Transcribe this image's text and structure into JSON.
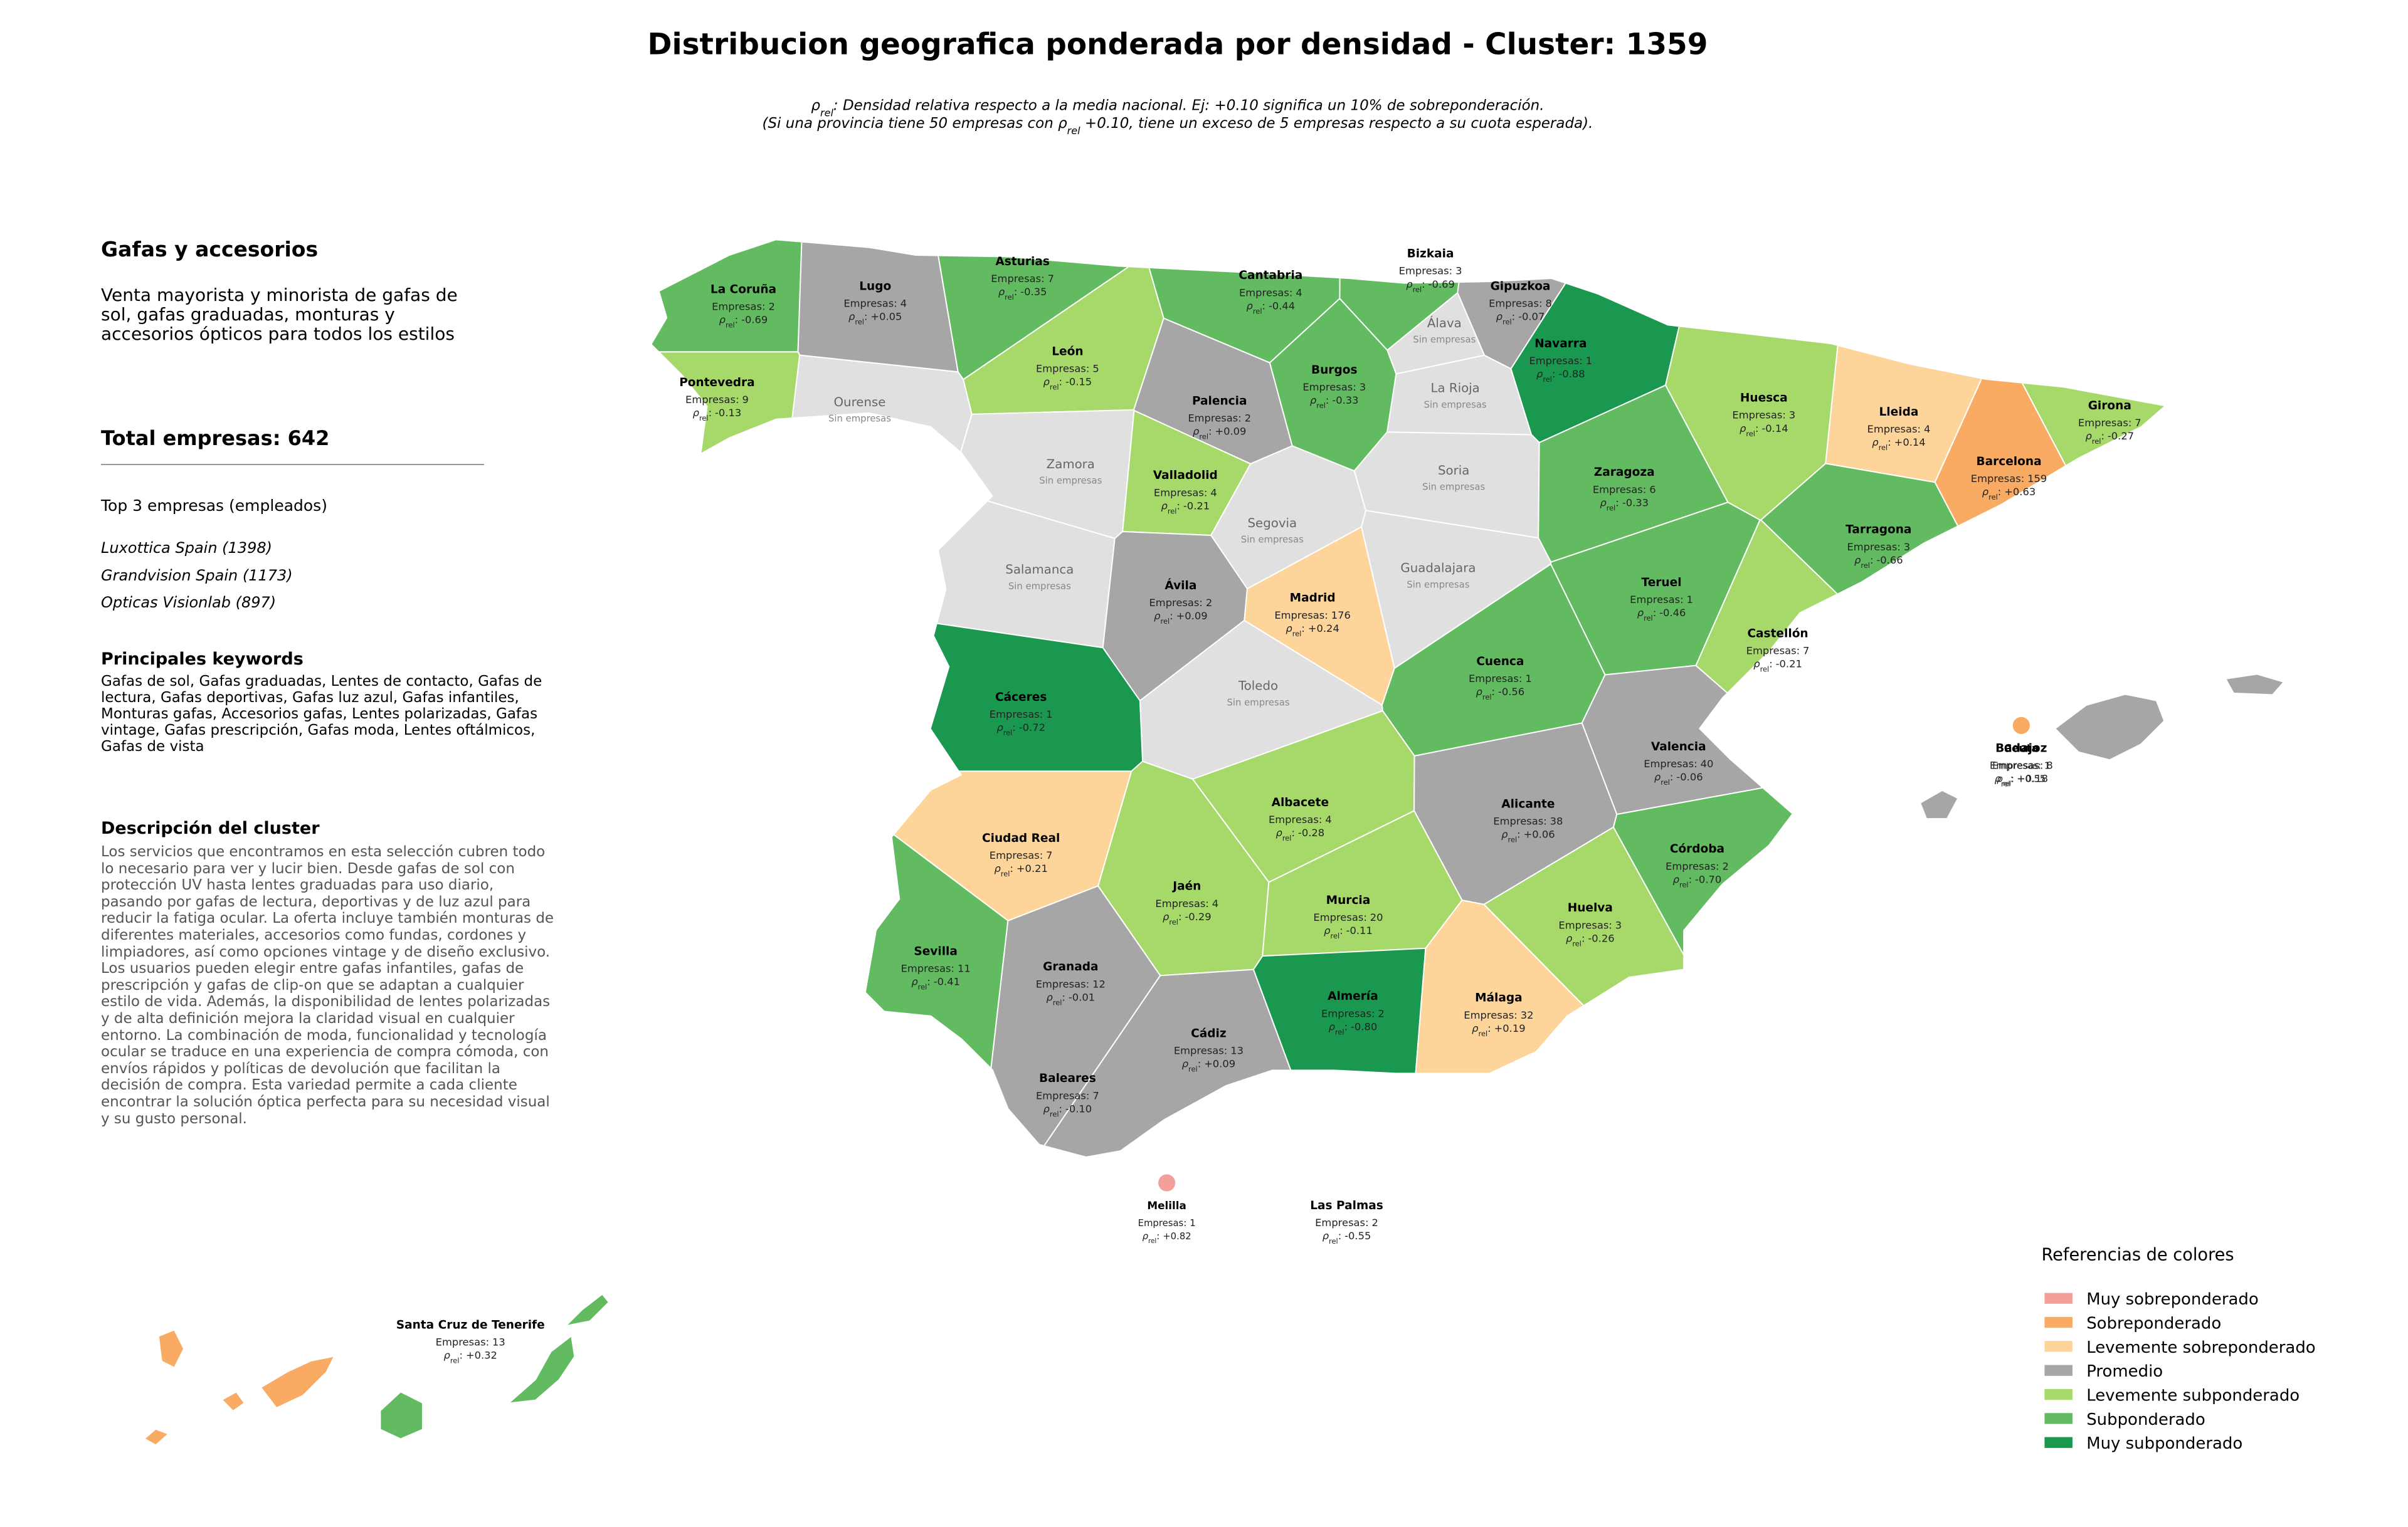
{
  "header": {
    "title": "Distribucion geografica ponderada por densidad - Cluster: 1359",
    "subtitle": [
      [
        {
          "text": "ρ"
        },
        {
          "sub": "rel"
        },
        {
          "text": ": Densidad relativa respecto a la media nacional. Ej: +0.10 significa un 10% de sobreponderación."
        }
      ],
      [
        {
          "text": "(Si una provincia tiene 50 empresas con "
        },
        {
          "text": "ρ"
        },
        {
          "sub": "rel"
        },
        {
          "text": " +0.10, tiene un exceso de 5 empresas respecto a su cuota esperada)."
        }
      ]
    ]
  },
  "panel": {
    "sector": "Gafas y accesorios",
    "sector_description": "Venta mayorista y minorista de gafas de sol, gafas graduadas, monturas y accesorios ópticos para todos los estilos",
    "total_label": "Total empresas:",
    "total": 642,
    "top_title": "Top 3 empresas (empleados)",
    "top": [
      "Luxottica Spain (1398)",
      "Grandvision Spain (1173)",
      "Opticas Visionlab (897)"
    ],
    "keywords_title": "Principales keywords",
    "keywords": "Gafas de sol, Gafas graduadas, Lentes de contacto, Gafas de lectura, Gafas deportivas, Gafas luz azul, Gafas infantiles, Monturas gafas, Accesorios gafas, Lentes polarizadas, Gafas vintage, Gafas prescripción, Gafas moda, Lentes oftálmicos, Gafas de vista",
    "description_title": "Descripción del cluster",
    "description": "Los servicios que encontramos en esta selección cubren todo lo necesario para ver y lucir bien. Desde gafas de sol con protección UV hasta lentes graduadas para uso diario, pasando por gafas de lectura, deportivas y de luz azul para reducir la fatiga ocular. La oferta incluye también monturas de diferentes materiales, accesorios como fundas, cordones y limpiadores, así como opciones vintage y de diseño exclusivo. Los usuarios pueden elegir entre gafas infantiles, gafas de prescripción y gafas de clip-on que se adaptan a cualquier estilo de vida. Además, la disponibilidad de lentes polarizadas y de alta definición mejora la claridad visual en cualquier entorno. La combinación de moda, funcionalidad y tecnología ocular se traduce en una experiencia de compra cómoda, con envíos rápidos y políticas de devolución que facilitan la decisión de compra. Esta variedad permite a cada cliente encontrar la solución óptica perfecta para su necesidad visual y su gusto personal."
  },
  "map": {
    "labels": {
      "empresas": "Empresas:",
      "none": "Sin empresas",
      "rho": "ρ",
      "rho_sub": "rel",
      "rho_suffix": ":"
    },
    "provinces": [
      {
        "name": "La Coruña",
        "empresas": 2,
        "rho": -0.69,
        "rho_label": "-0.69",
        "color": "#62bb60"
      },
      {
        "name": "Lugo",
        "empresas": 4,
        "rho": 0.05,
        "rho_label": "+0.05",
        "color": "#a6a6a6"
      },
      {
        "name": "Asturias",
        "empresas": 7,
        "rho": -0.35,
        "rho_label": "-0.35",
        "color": "#62bb60"
      },
      {
        "name": "Cantabria",
        "empresas": 4,
        "rho": -0.44,
        "rho_label": "-0.44",
        "color": "#62bb60"
      },
      {
        "name": "Bizkaia",
        "empresas": 3,
        "rho": -0.69,
        "rho_label": "-0.69",
        "color": "#62bb60"
      },
      {
        "name": "Gipuzkoa",
        "empresas": 8,
        "rho": -0.07,
        "rho_label": "-0.07",
        "color": "#a6a6a6"
      },
      {
        "name": "Navarra",
        "empresas": 1,
        "rho": -0.88,
        "rho_label": "-0.88",
        "color": "#1a9850"
      },
      {
        "name": "Pontevedra",
        "empresas": 9,
        "rho": -0.13,
        "rho_label": "-0.13",
        "color": "#a6d96a"
      },
      {
        "name": "Ourense",
        "color": "#e0e0e0"
      },
      {
        "name": "León",
        "empresas": 5,
        "rho": -0.15,
        "rho_label": "-0.15",
        "color": "#a6d96a"
      },
      {
        "name": "Palencia",
        "empresas": 2,
        "rho": 0.09,
        "rho_label": "+0.09",
        "color": "#a6a6a6"
      },
      {
        "name": "Burgos",
        "empresas": 3,
        "rho": -0.33,
        "rho_label": "-0.33",
        "color": "#62bb60"
      },
      {
        "name": "Álava",
        "color": "#e0e0e0"
      },
      {
        "name": "La Rioja",
        "color": "#e0e0e0"
      },
      {
        "name": "Huesca",
        "empresas": 3,
        "rho": -0.14,
        "rho_label": "-0.14",
        "color": "#a6d96a"
      },
      {
        "name": "Lleida",
        "empresas": 4,
        "rho": 0.14,
        "rho_label": "+0.14",
        "color": "#fdd49a"
      },
      {
        "name": "Girona",
        "empresas": 7,
        "rho": -0.27,
        "rho_label": "-0.27",
        "color": "#a6d96a"
      },
      {
        "name": "Barcelona",
        "empresas": 159,
        "rho": 0.63,
        "rho_label": "+0.63",
        "color": "#f9ab63"
      },
      {
        "name": "Zamora",
        "color": "#e0e0e0"
      },
      {
        "name": "Valladolid",
        "empresas": 4,
        "rho": -0.21,
        "rho_label": "-0.21",
        "color": "#a6d96a"
      },
      {
        "name": "Soria",
        "color": "#e0e0e0"
      },
      {
        "name": "Zaragoza",
        "empresas": 6,
        "rho": -0.33,
        "rho_label": "-0.33",
        "color": "#62bb60"
      },
      {
        "name": "Tarragona",
        "empresas": 3,
        "rho": -0.66,
        "rho_label": "-0.66",
        "color": "#62bb60"
      },
      {
        "name": "Salamanca",
        "color": "#e0e0e0"
      },
      {
        "name": "Segovia",
        "color": "#e0e0e0"
      },
      {
        "name": "Guadalajara",
        "color": "#e0e0e0"
      },
      {
        "name": "Ávila",
        "empresas": 2,
        "rho": 0.09,
        "rho_label": "+0.09",
        "color": "#a6a6a6"
      },
      {
        "name": "Madrid",
        "empresas": 176,
        "rho": 0.24,
        "rho_label": "+0.24",
        "color": "#fdd49a"
      },
      {
        "name": "Teruel",
        "empresas": 1,
        "rho": -0.46,
        "rho_label": "-0.46",
        "color": "#62bb60"
      },
      {
        "name": "Castellón",
        "empresas": 7,
        "rho": -0.21,
        "rho_label": "-0.21",
        "color": "#a6d96a"
      },
      {
        "name": "Toledo",
        "color": "#e0e0e0"
      },
      {
        "name": "Cáceres",
        "empresas": 1,
        "rho": -0.72,
        "rho_label": "-0.72",
        "color": "#1a9850"
      },
      {
        "name": "Cuenca",
        "empresas": 1,
        "rho": -0.56,
        "rho_label": "-0.56",
        "color": "#62bb60"
      },
      {
        "name": "Valencia",
        "empresas": 40,
        "rho": -0.06,
        "rho_label": "-0.06",
        "color": "#a6a6a6"
      },
      {
        "name": "Badajoz",
        "empresas": 8,
        "rho": 0.18,
        "rho_label": "+0.18",
        "color": "#fdd49a"
      },
      {
        "name": "Ciudad Real",
        "empresas": 7,
        "rho": 0.21,
        "rho_label": "+0.21",
        "color": "#fdd49a"
      },
      {
        "name": "Albacete",
        "empresas": 4,
        "rho": -0.28,
        "rho_label": "-0.28",
        "color": "#a6d96a"
      },
      {
        "name": "Alicante",
        "empresas": 38,
        "rho": 0.06,
        "rho_label": "+0.06",
        "color": "#a6a6a6"
      },
      {
        "name": "Córdoba",
        "empresas": 2,
        "rho": -0.7,
        "rho_label": "-0.70",
        "color": "#62bb60"
      },
      {
        "name": "Jaén",
        "empresas": 4,
        "rho": -0.29,
        "rho_label": "-0.29",
        "color": "#a6d96a"
      },
      {
        "name": "Murcia",
        "empresas": 20,
        "rho": -0.11,
        "rho_label": "-0.11",
        "color": "#a6d96a"
      },
      {
        "name": "Huelva",
        "empresas": 3,
        "rho": -0.26,
        "rho_label": "-0.26",
        "color": "#a6d96a"
      },
      {
        "name": "Sevilla",
        "empresas": 11,
        "rho": -0.41,
        "rho_label": "-0.41",
        "color": "#62bb60"
      },
      {
        "name": "Granada",
        "empresas": 12,
        "rho": -0.01,
        "rho_label": "-0.01",
        "color": "#a6a6a6"
      },
      {
        "name": "Almería",
        "empresas": 2,
        "rho": -0.8,
        "rho_label": "-0.80",
        "color": "#1a9850"
      },
      {
        "name": "Málaga",
        "empresas": 32,
        "rho": 0.19,
        "rho_label": "+0.19",
        "color": "#fdd49a"
      },
      {
        "name": "Cádiz",
        "empresas": 13,
        "rho": 0.09,
        "rho_label": "+0.09",
        "color": "#a6a6a6"
      },
      {
        "name": "Baleares",
        "empresas": 7,
        "rho": -0.1,
        "rho_label": "-0.10",
        "color": "#a6a6a6"
      },
      {
        "name": "Ceuta",
        "empresas": 1,
        "rho": 0.55,
        "rho_label": "+0.55",
        "color": "#f9ab63"
      },
      {
        "name": "Melilla",
        "empresas": 1,
        "rho": 0.82,
        "rho_label": "+0.82",
        "color": "#f4a09a"
      },
      {
        "name": "Las Palmas",
        "empresas": 2,
        "rho": -0.55,
        "rho_label": "-0.55",
        "color": "#62bb60"
      },
      {
        "name": "Santa Cruz de Tenerife",
        "empresas": 13,
        "rho": 0.32,
        "rho_label": "+0.32",
        "color": "#f9ab63"
      }
    ]
  },
  "legend": {
    "title": "Referencias de colores",
    "items": [
      {
        "name": "Muy sobreponderado",
        "color": "#f4a09a"
      },
      {
        "name": "Sobreponderado",
        "color": "#f9ab63"
      },
      {
        "name": "Levemente sobreponderado",
        "color": "#fdd49a"
      },
      {
        "name": "Promedio",
        "color": "#a6a6a6"
      },
      {
        "name": "Levemente subponderado",
        "color": "#a6d96a"
      },
      {
        "name": "Subponderado",
        "color": "#62bb60"
      },
      {
        "name": "Muy subponderado",
        "color": "#1a9850"
      }
    ]
  }
}
